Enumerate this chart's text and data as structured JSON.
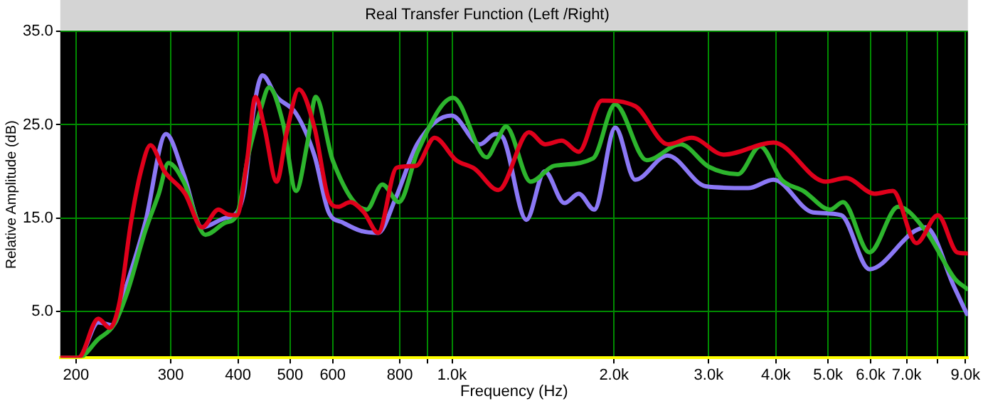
{
  "chart_data": {
    "type": "line",
    "title": "Real Transfer Function (Left /Right)",
    "xlabel": "Frequency (Hz)",
    "ylabel": "Relative Amplitude (dB)",
    "log": "x",
    "grid": true,
    "legend": false,
    "marker": "none",
    "line_style": "solid",
    "xlim": [
      187,
      9100
    ],
    "ylim": [
      0,
      35
    ],
    "xticks": [
      {
        "value": 200,
        "label": "200"
      },
      {
        "value": 300,
        "label": "300"
      },
      {
        "value": 400,
        "label": "400"
      },
      {
        "value": 500,
        "label": "500"
      },
      {
        "value": 600,
        "label": "600"
      },
      {
        "value": 800,
        "label": "800"
      },
      {
        "value": 900,
        "label": null
      },
      {
        "value": 1000,
        "label": "1.0k"
      },
      {
        "value": 2000,
        "label": "2.0k"
      },
      {
        "value": 3000,
        "label": "3.0k"
      },
      {
        "value": 4000,
        "label": "4.0k"
      },
      {
        "value": 5000,
        "label": "5.0k"
      },
      {
        "value": 6000,
        "label": "6.0k"
      },
      {
        "value": 7000,
        "label": "7.0k"
      },
      {
        "value": 8000,
        "label": null
      },
      {
        "value": 9000,
        "label": "9.0k"
      }
    ],
    "yticks": [
      {
        "value": 5,
        "label": "5.0"
      },
      {
        "value": 15,
        "label": "15.0"
      },
      {
        "value": 25,
        "label": "25.0"
      },
      {
        "value": 35,
        "label": "35.0"
      }
    ],
    "series": [
      {
        "color": "#8b78f5",
        "x": [
          187,
          202,
          220,
          234,
          249,
          269,
          294,
          317,
          343,
          379,
          394,
          411,
          428,
          444,
          472,
          513,
          555,
          590,
          627,
          678,
          729,
          784,
          863,
          998,
          1126,
          1204,
          1241,
          1375,
          1487,
          1618,
          1720,
          1838,
          2012,
          2190,
          2516,
          2962,
          3550,
          3960,
          4690,
          5290,
          5970,
          7245,
          7600,
          8580,
          9060
        ],
        "values": [
          0,
          0,
          3.8,
          3.5,
          8,
          14.5,
          24,
          19.7,
          14,
          15,
          15.3,
          18,
          26.7,
          30.3,
          28,
          26.2,
          21.7,
          15.6,
          14.5,
          13.6,
          13.4,
          17,
          23,
          26,
          22.9,
          24,
          23.7,
          14.8,
          20,
          16.6,
          17.6,
          15.9,
          24.7,
          19.1,
          21.7,
          18.4,
          18.2,
          19.1,
          15.6,
          15.3,
          9.5,
          13.6,
          14,
          7.6,
          4.7
        ]
      },
      {
        "color": "#2db52d",
        "x": [
          187,
          202,
          220,
          235,
          249,
          269,
          285,
          297,
          317,
          348,
          379,
          398,
          418,
          441,
          457,
          485,
          513,
          539,
          558,
          600,
          694,
          742,
          797,
          863,
          1005,
          1160,
          1210,
          1260,
          1400,
          1550,
          1830,
          2010,
          2300,
          2660,
          3000,
          3400,
          3740,
          4100,
          4500,
          5050,
          5330,
          5970,
          6750,
          7600,
          8600,
          9060
        ],
        "values": [
          0,
          0,
          2,
          3.5,
          7,
          13.6,
          17.6,
          20.9,
          18.9,
          13.2,
          14.5,
          15.3,
          21.7,
          26.7,
          29,
          25.2,
          17.9,
          23.2,
          28,
          21.2,
          15.9,
          18.6,
          16.7,
          22.1,
          27.9,
          21.5,
          23.2,
          24.8,
          18.9,
          20.6,
          21.4,
          27.2,
          21.2,
          22.9,
          20.5,
          19.7,
          22.7,
          19.1,
          17.9,
          15.9,
          16.7,
          11.3,
          16.2,
          13.6,
          8.5,
          7.4
        ]
      },
      {
        "color": "#e0001b",
        "x": [
          187,
          202,
          220,
          231,
          241,
          253,
          264,
          275,
          292,
          319,
          343,
          368,
          382,
          398,
          416,
          431,
          448,
          472,
          493,
          519,
          555,
          590,
          614,
          647,
          686,
          729,
          789,
          858,
          928,
          1018,
          1100,
          1220,
          1390,
          1490,
          1600,
          1720,
          1900,
          2190,
          2520,
          2790,
          3200,
          3960,
          4950,
          5400,
          6100,
          6600,
          7300,
          8000,
          8700,
          9060
        ],
        "values": [
          0,
          0,
          4.2,
          3.2,
          6,
          14.5,
          20,
          22.8,
          20,
          17.6,
          14,
          15.9,
          15.4,
          15.3,
          21.2,
          28,
          24.7,
          18.9,
          24.2,
          28.8,
          24.7,
          17,
          16.2,
          16.7,
          15.6,
          13.4,
          20.4,
          20.6,
          23.6,
          21.2,
          20.3,
          18,
          24.2,
          22.9,
          23.3,
          22.1,
          27.6,
          27,
          22.9,
          23.6,
          21.8,
          23.1,
          18.9,
          19.3,
          17.6,
          17.9,
          12.3,
          15.3,
          11.3,
          11.2
        ]
      }
    ]
  }
}
